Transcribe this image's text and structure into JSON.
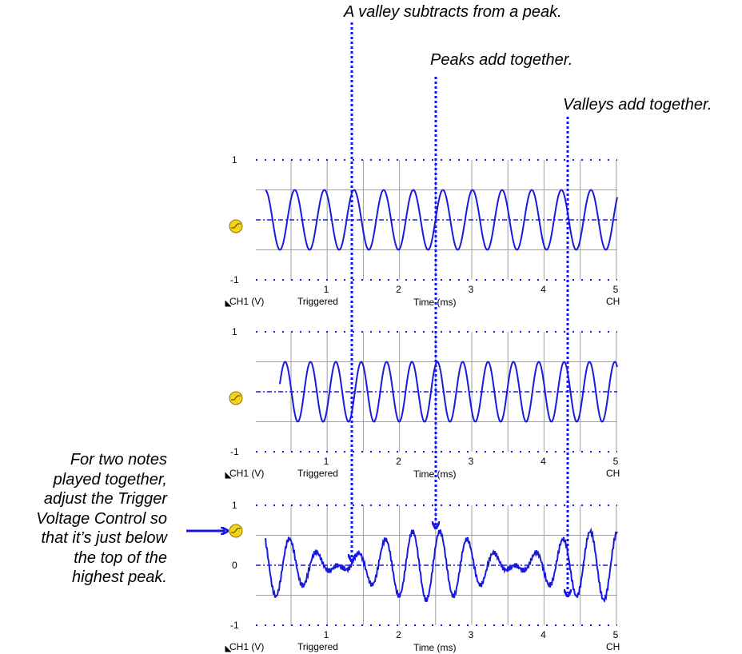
{
  "annotations": {
    "valley_subtracts": "A valley subtracts from a peak.",
    "peaks_add": "Peaks add together.",
    "valleys_add": "Valleys add together.",
    "left_note": [
      "For two notes",
      "played together,",
      "adjust the Trigger",
      "Voltage Control so",
      "that it’s just below",
      "the top of the",
      "highest peak."
    ]
  },
  "scope_common": {
    "channel_label": "CH1 (V)",
    "status": "Triggered",
    "x_axis_label": "Time (ms)",
    "x_ticks": [
      "1",
      "2",
      "3",
      "4",
      "5"
    ],
    "corner_tag": "CH"
  },
  "panels": [
    {
      "name": "top",
      "y_top_label": "1",
      "y_bottom_label": "-1",
      "y_mid_label": "",
      "wave": "sine",
      "freq_per_ms": 2.44,
      "amplitude": 0.5
    },
    {
      "name": "middle",
      "y_top_label": "1",
      "y_bottom_label": "-1",
      "y_mid_label": "",
      "wave": "sine",
      "freq_per_ms": 2.85,
      "amplitude": 0.5
    },
    {
      "name": "bottom",
      "y_top_label": "1",
      "y_bottom_label": "-1",
      "y_mid_label": "0",
      "wave": "sum",
      "freq_per_ms": 2.5,
      "amplitude": 0.5
    }
  ],
  "colors": {
    "trace": "#1a1add",
    "arrow": "#1515e6",
    "corner_tag": "#cc0000",
    "grid": "#a0a0a0",
    "trigger_icon": "#f7d417"
  },
  "icons": {
    "trigger": "trigger-level-icon"
  }
}
